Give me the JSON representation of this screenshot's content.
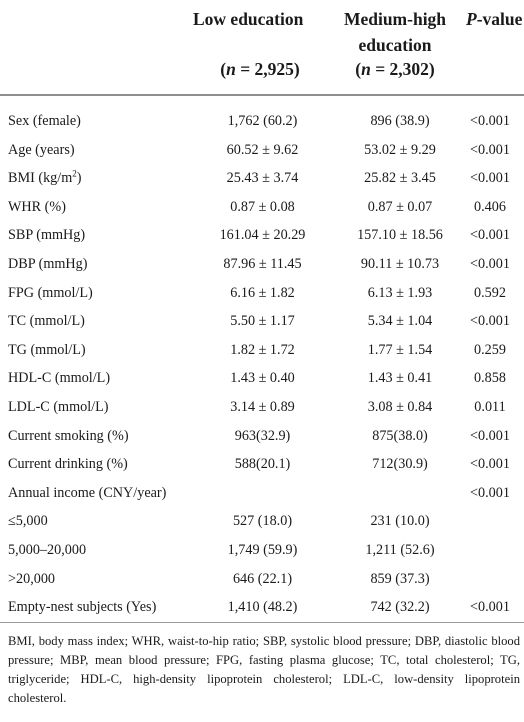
{
  "header": {
    "col1_title": "Low education",
    "col2_title_line1": "Medium-high",
    "col2_title_line2": "education",
    "col3_title_italic": "P",
    "col3_title_rest": "-value",
    "col1_n_label": "n",
    "col1_n_value": " = 2,925",
    "col2_n_label": "n",
    "col2_n_value": " = 2,302"
  },
  "rows": [
    {
      "label": "Sex (female)",
      "low": "1,762 (60.2)",
      "medhigh": "896 (38.9)",
      "p": "<0.001"
    },
    {
      "label": "Age (years)",
      "low": "60.52 ± 9.62",
      "medhigh": "53.02 ± 9.29",
      "p": "<0.001"
    },
    {
      "label_pre": "BMI (kg/m",
      "label_sup": "2",
      "label_post": ")",
      "low": "25.43 ± 3.74",
      "medhigh": "25.82 ± 3.45",
      "p": "<0.001"
    },
    {
      "label": "WHR (%)",
      "low": "0.87 ± 0.08",
      "medhigh": "0.87 ± 0.07",
      "p": "0.406"
    },
    {
      "label": "SBP (mmHg)",
      "low": "161.04 ± 20.29",
      "medhigh": "157.10 ± 18.56",
      "p": "<0.001"
    },
    {
      "label": "DBP (mmHg)",
      "low": "87.96 ± 11.45",
      "medhigh": "90.11 ± 10.73",
      "p": "<0.001"
    },
    {
      "label": "FPG (mmol/L)",
      "low": "6.16 ± 1.82",
      "medhigh": "6.13 ± 1.93",
      "p": "0.592"
    },
    {
      "label": "TC (mmol/L)",
      "low": "5.50 ± 1.17",
      "medhigh": "5.34 ± 1.04",
      "p": "<0.001"
    },
    {
      "label": "TG (mmol/L)",
      "low": "1.82 ± 1.72",
      "medhigh": "1.77 ± 1.54",
      "p": "0.259"
    },
    {
      "label": "HDL-C (mmol/L)",
      "low": "1.43 ± 0.40",
      "medhigh": "1.43 ± 0.41",
      "p": "0.858"
    },
    {
      "label": "LDL-C (mmol/L)",
      "low": "3.14 ± 0.89",
      "medhigh": "3.08 ± 0.84",
      "p": "0.011"
    },
    {
      "label": "Current smoking (%)",
      "low": "963(32.9)",
      "medhigh": "875(38.0)",
      "p": "<0.001"
    },
    {
      "label": "Current drinking (%)",
      "low": "588(20.1)",
      "medhigh": "712(30.9)",
      "p": "<0.001"
    },
    {
      "label": "Annual income (CNY/year)",
      "low": "",
      "medhigh": "",
      "p": "<0.001"
    },
    {
      "label": "≤5,000",
      "low": "527 (18.0)",
      "medhigh": "231 (10.0)",
      "p": ""
    },
    {
      "label": "5,000–20,000",
      "low": "1,749 (59.9)",
      "medhigh": "1,211 (52.6)",
      "p": ""
    },
    {
      "label": ">20,000",
      "low": "646 (22.1)",
      "medhigh": "859 (37.3)",
      "p": ""
    },
    {
      "label": "Empty-nest subjects (Yes)",
      "low": "1,410 (48.2)",
      "medhigh": "742 (32.2)",
      "p": "<0.001"
    }
  ],
  "footnote": "BMI, body mass index; WHR, waist-to-hip ratio; SBP, systolic blood pressure; DBP, diastolic blood pressure; MBP, mean blood pressure; FPG, fasting plasma glucose; TC, total cholesterol; TG, triglyceride; HDL-C, high-density lipoprotein cholesterol; LDL-C, low-density lipoprotein cholesterol."
}
